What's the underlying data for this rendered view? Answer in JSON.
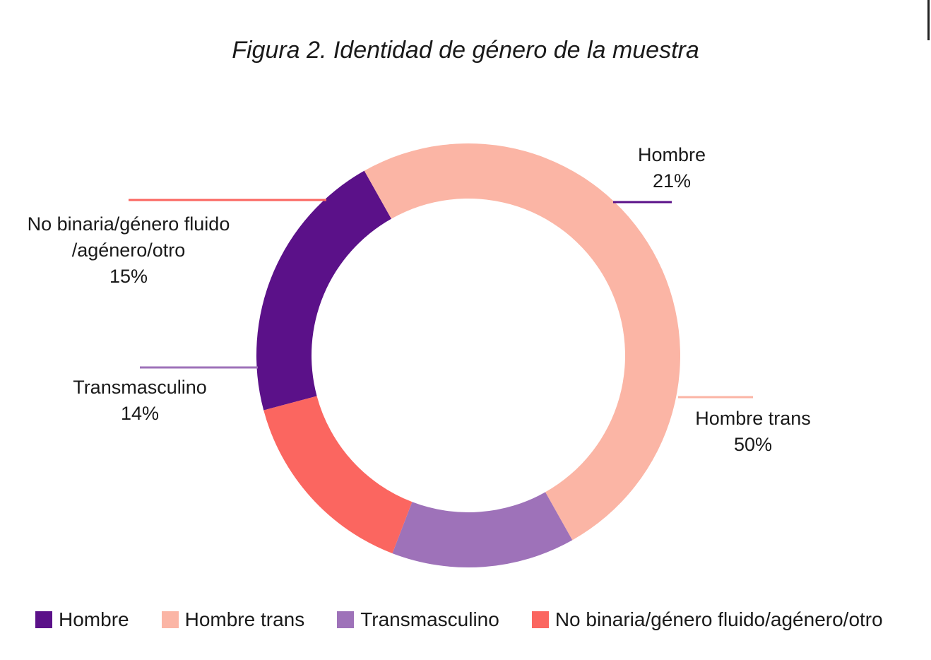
{
  "title": "Figura 2. Identidad de género de la muestra",
  "chart_data": {
    "type": "pie",
    "subtype": "donut",
    "title": "Figura 2. Identidad de género de la muestra",
    "categories": [
      "Hombre",
      "Hombre trans",
      "Transmasculino",
      "No binaria/género fluido/agénero/otro"
    ],
    "values": [
      21,
      50,
      14,
      15
    ],
    "unit": "%",
    "colors": [
      "#5b1189",
      "#fbb5a5",
      "#9e72b9",
      "#fb6660"
    ],
    "data_labels": [
      {
        "lines": [
          "Hombre",
          "21%"
        ]
      },
      {
        "lines": [
          "Hombre trans",
          "50%"
        ]
      },
      {
        "lines": [
          "Transmasculino",
          "14%"
        ]
      },
      {
        "lines": [
          "No binaria/género fluido",
          "/agénero/otro",
          "15%"
        ]
      }
    ],
    "legend_position": "bottom"
  },
  "legend": [
    {
      "label": "Hombre",
      "color": "#5b1189"
    },
    {
      "label": "Hombre trans",
      "color": "#fbb5a5"
    },
    {
      "label": "Transmasculino",
      "color": "#9e72b9"
    },
    {
      "label": "No binaria/género fluido/agénero/otro",
      "color": "#fb6660"
    }
  ]
}
